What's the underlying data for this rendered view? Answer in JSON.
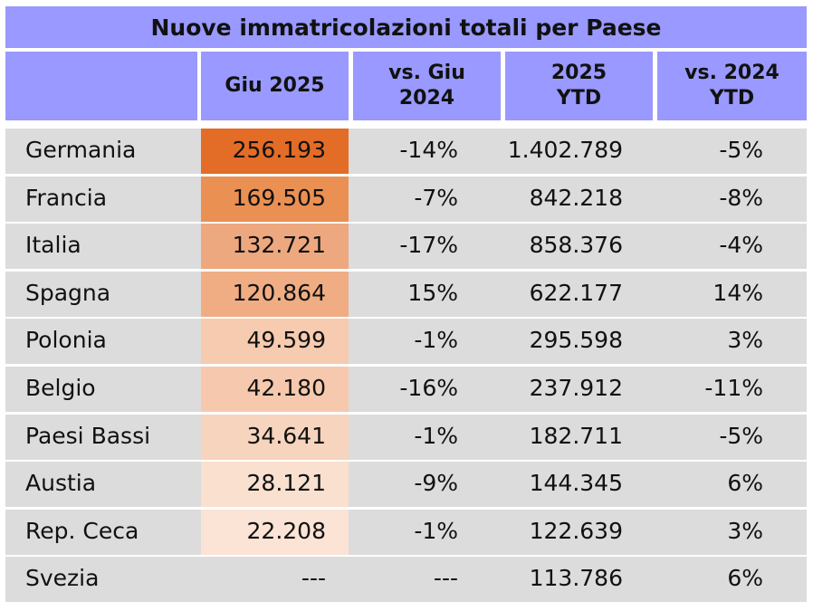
{
  "title": "Nuove immatricolazioni totali per Paese",
  "headers": [
    "",
    "Giu 2025",
    "vs. Giu\n2024",
    "2025\nYTD",
    "vs. 2024\nYTD"
  ],
  "colors": {
    "header_bg": "#9999ff",
    "row_bg": "#dcdcdc",
    "heat_scale": [
      "#e36c27",
      "#eb9053",
      "#eea87f",
      "#f0ad83",
      "#f6cbb0",
      "#f6c9ae",
      "#f7d4bd",
      "#f9e0cf",
      "#fbe3d5"
    ]
  },
  "rows": [
    {
      "country": "Germania",
      "giu_2025": "256.193",
      "vs_giu_2024": "-14%",
      "ytd_2025": "1.402.789",
      "vs_2024_ytd": "-5%"
    },
    {
      "country": "Francia",
      "giu_2025": "169.505",
      "vs_giu_2024": "-7%",
      "ytd_2025": "842.218",
      "vs_2024_ytd": "-8%"
    },
    {
      "country": "Italia",
      "giu_2025": "132.721",
      "vs_giu_2024": "-17%",
      "ytd_2025": "858.376",
      "vs_2024_ytd": "-4%"
    },
    {
      "country": "Spagna",
      "giu_2025": "120.864",
      "vs_giu_2024": "15%",
      "ytd_2025": "622.177",
      "vs_2024_ytd": "14%"
    },
    {
      "country": "Polonia",
      "giu_2025": "49.599",
      "vs_giu_2024": "-1%",
      "ytd_2025": "295.598",
      "vs_2024_ytd": "3%"
    },
    {
      "country": "Belgio",
      "giu_2025": "42.180",
      "vs_giu_2024": "-16%",
      "ytd_2025": "237.912",
      "vs_2024_ytd": "-11%"
    },
    {
      "country": "Paesi Bassi",
      "giu_2025": "34.641",
      "vs_giu_2024": "-1%",
      "ytd_2025": "182.711",
      "vs_2024_ytd": "-5%"
    },
    {
      "country": "Austia",
      "giu_2025": "28.121",
      "vs_giu_2024": "-9%",
      "ytd_2025": "144.345",
      "vs_2024_ytd": "6%"
    },
    {
      "country": "Rep. Ceca",
      "giu_2025": "22.208",
      "vs_giu_2024": "-1%",
      "ytd_2025": "122.639",
      "vs_2024_ytd": "3%"
    },
    {
      "country": "Svezia",
      "giu_2025": "---",
      "vs_giu_2024": "---",
      "ytd_2025": "113.786",
      "vs_2024_ytd": "6%"
    }
  ],
  "chart_data": {
    "type": "table",
    "title": "Nuove immatricolazioni totali per Paese",
    "columns": [
      "",
      "Giu 2025",
      "vs. Giu 2024",
      "2025 YTD",
      "vs. 2024 YTD"
    ],
    "categories": [
      "Germania",
      "Francia",
      "Italia",
      "Spagna",
      "Polonia",
      "Belgio",
      "Paesi Bassi",
      "Austia",
      "Rep. Ceca",
      "Svezia"
    ],
    "series": [
      {
        "name": "Giu 2025",
        "values": [
          256193,
          169505,
          132721,
          120864,
          49599,
          42180,
          34641,
          28121,
          22208,
          null
        ]
      },
      {
        "name": "vs. Giu 2024",
        "values": [
          -14,
          -7,
          -17,
          15,
          -1,
          -16,
          -1,
          -9,
          -1,
          null
        ]
      },
      {
        "name": "2025 YTD",
        "values": [
          1402789,
          842218,
          858376,
          622177,
          295598,
          237912,
          182711,
          144345,
          122639,
          113786
        ]
      },
      {
        "name": "vs. 2024 YTD",
        "values": [
          -5,
          -8,
          -4,
          14,
          3,
          -11,
          -5,
          6,
          3,
          6
        ]
      }
    ]
  }
}
